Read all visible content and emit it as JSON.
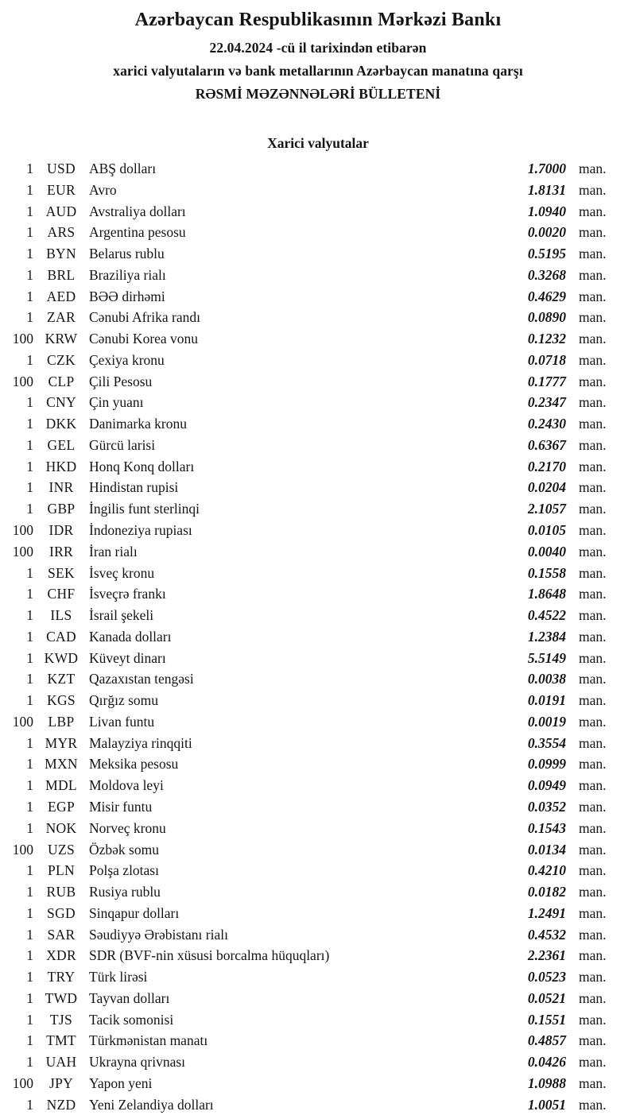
{
  "header": {
    "bank_name": "Azərbaycan Respublikasının Mərkəzi Bankı",
    "date_line": "22.04.2024 -cü il tarixindən etibarən",
    "subtitle": "xarici valyutaların və bank metallarının Azərbaycan manatına qarşı",
    "bulletin_title": "RƏSMİ MƏZƏNNƏLƏRİ BÜLLETENİ"
  },
  "section": {
    "title": "Xarici valyutalar"
  },
  "table": {
    "unit_label": "man.",
    "rows": [
      {
        "qty": "1",
        "code": "USD",
        "name": "ABŞ dolları",
        "rate": "1.7000"
      },
      {
        "qty": "1",
        "code": "EUR",
        "name": "Avro",
        "rate": "1.8131"
      },
      {
        "qty": "1",
        "code": "AUD",
        "name": "Avstraliya dolları",
        "rate": "1.0940"
      },
      {
        "qty": "1",
        "code": "ARS",
        "name": "Argentina pesosu",
        "rate": "0.0020"
      },
      {
        "qty": "1",
        "code": "BYN",
        "name": "Belarus rublu",
        "rate": "0.5195"
      },
      {
        "qty": "1",
        "code": "BRL",
        "name": "Braziliya rialı",
        "rate": "0.3268"
      },
      {
        "qty": "1",
        "code": "AED",
        "name": "BƏƏ dirhəmi",
        "rate": "0.4629"
      },
      {
        "qty": "1",
        "code": "ZAR",
        "name": "Cənubi Afrika randı",
        "rate": "0.0890"
      },
      {
        "qty": "100",
        "code": "KRW",
        "name": "Cənubi Korea vonu",
        "rate": "0.1232"
      },
      {
        "qty": "1",
        "code": "CZK",
        "name": "Çexiya kronu",
        "rate": "0.0718"
      },
      {
        "qty": "100",
        "code": "CLP",
        "name": "Çili Pesosu",
        "rate": "0.1777"
      },
      {
        "qty": "1",
        "code": "CNY",
        "name": "Çin yuanı",
        "rate": "0.2347"
      },
      {
        "qty": "1",
        "code": "DKK",
        "name": "Danimarka kronu",
        "rate": "0.2430"
      },
      {
        "qty": "1",
        "code": "GEL",
        "name": "Gürcü larisi",
        "rate": "0.6367"
      },
      {
        "qty": "1",
        "code": "HKD",
        "name": "Honq Konq dolları",
        "rate": "0.2170"
      },
      {
        "qty": "1",
        "code": "INR",
        "name": "Hindistan rupisi",
        "rate": "0.0204"
      },
      {
        "qty": "1",
        "code": "GBP",
        "name": "İngilis funt sterlinqi",
        "rate": "2.1057"
      },
      {
        "qty": "100",
        "code": "IDR",
        "name": "İndoneziya rupiası",
        "rate": "0.0105"
      },
      {
        "qty": "100",
        "code": "IRR",
        "name": "İran rialı",
        "rate": "0.0040"
      },
      {
        "qty": "1",
        "code": "SEK",
        "name": "İsveç kronu",
        "rate": "0.1558"
      },
      {
        "qty": "1",
        "code": "CHF",
        "name": "İsveçrə frankı",
        "rate": "1.8648"
      },
      {
        "qty": "1",
        "code": "ILS",
        "name": "İsrail şekeli",
        "rate": "0.4522"
      },
      {
        "qty": "1",
        "code": "CAD",
        "name": "Kanada dolları",
        "rate": "1.2384"
      },
      {
        "qty": "1",
        "code": "KWD",
        "name": "Küveyt dinarı",
        "rate": "5.5149"
      },
      {
        "qty": "1",
        "code": "KZT",
        "name": "Qazaxıstan tengəsi",
        "rate": "0.0038"
      },
      {
        "qty": "1",
        "code": "KGS",
        "name": "Qırğız somu",
        "rate": "0.0191"
      },
      {
        "qty": "100",
        "code": "LBP",
        "name": "Livan funtu",
        "rate": "0.0019"
      },
      {
        "qty": "1",
        "code": "MYR",
        "name": "Malayziya rinqqiti",
        "rate": "0.3554"
      },
      {
        "qty": "1",
        "code": "MXN",
        "name": "Meksika pesosu",
        "rate": "0.0999"
      },
      {
        "qty": "1",
        "code": "MDL",
        "name": "Moldova leyi",
        "rate": "0.0949"
      },
      {
        "qty": "1",
        "code": "EGP",
        "name": "Misir funtu",
        "rate": "0.0352"
      },
      {
        "qty": "1",
        "code": "NOK",
        "name": "Norveç kronu",
        "rate": "0.1543"
      },
      {
        "qty": "100",
        "code": "UZS",
        "name": "Özbək somu",
        "rate": "0.0134"
      },
      {
        "qty": "1",
        "code": "PLN",
        "name": "Polşa zlotası",
        "rate": "0.4210"
      },
      {
        "qty": "1",
        "code": "RUB",
        "name": "Rusiya rublu",
        "rate": "0.0182"
      },
      {
        "qty": "1",
        "code": "SGD",
        "name": "Sinqapur dolları",
        "rate": "1.2491"
      },
      {
        "qty": "1",
        "code": "SAR",
        "name": "Səudiyyə Ərəbistanı rialı",
        "rate": "0.4532"
      },
      {
        "qty": "1",
        "code": "XDR",
        "name": "SDR (BVF-nin xüsusi borcalma hüquqları)",
        "rate": "2.2361"
      },
      {
        "qty": "1",
        "code": "TRY",
        "name": "Türk lirəsi",
        "rate": "0.0523"
      },
      {
        "qty": "1",
        "code": "TWD",
        "name": "Tayvan dolları",
        "rate": "0.0521"
      },
      {
        "qty": "1",
        "code": "TJS",
        "name": "Tacik somonisi",
        "rate": "0.1551"
      },
      {
        "qty": "1",
        "code": "TMT",
        "name": "Türkmənistan manatı",
        "rate": "0.4857"
      },
      {
        "qty": "1",
        "code": "UAH",
        "name": "Ukrayna qrivnası",
        "rate": "0.0426"
      },
      {
        "qty": "100",
        "code": "JPY",
        "name": "Yapon yeni",
        "rate": "1.0988"
      },
      {
        "qty": "1",
        "code": "NZD",
        "name": "Yeni Zelandiya dolları",
        "rate": "1.0051"
      }
    ]
  }
}
